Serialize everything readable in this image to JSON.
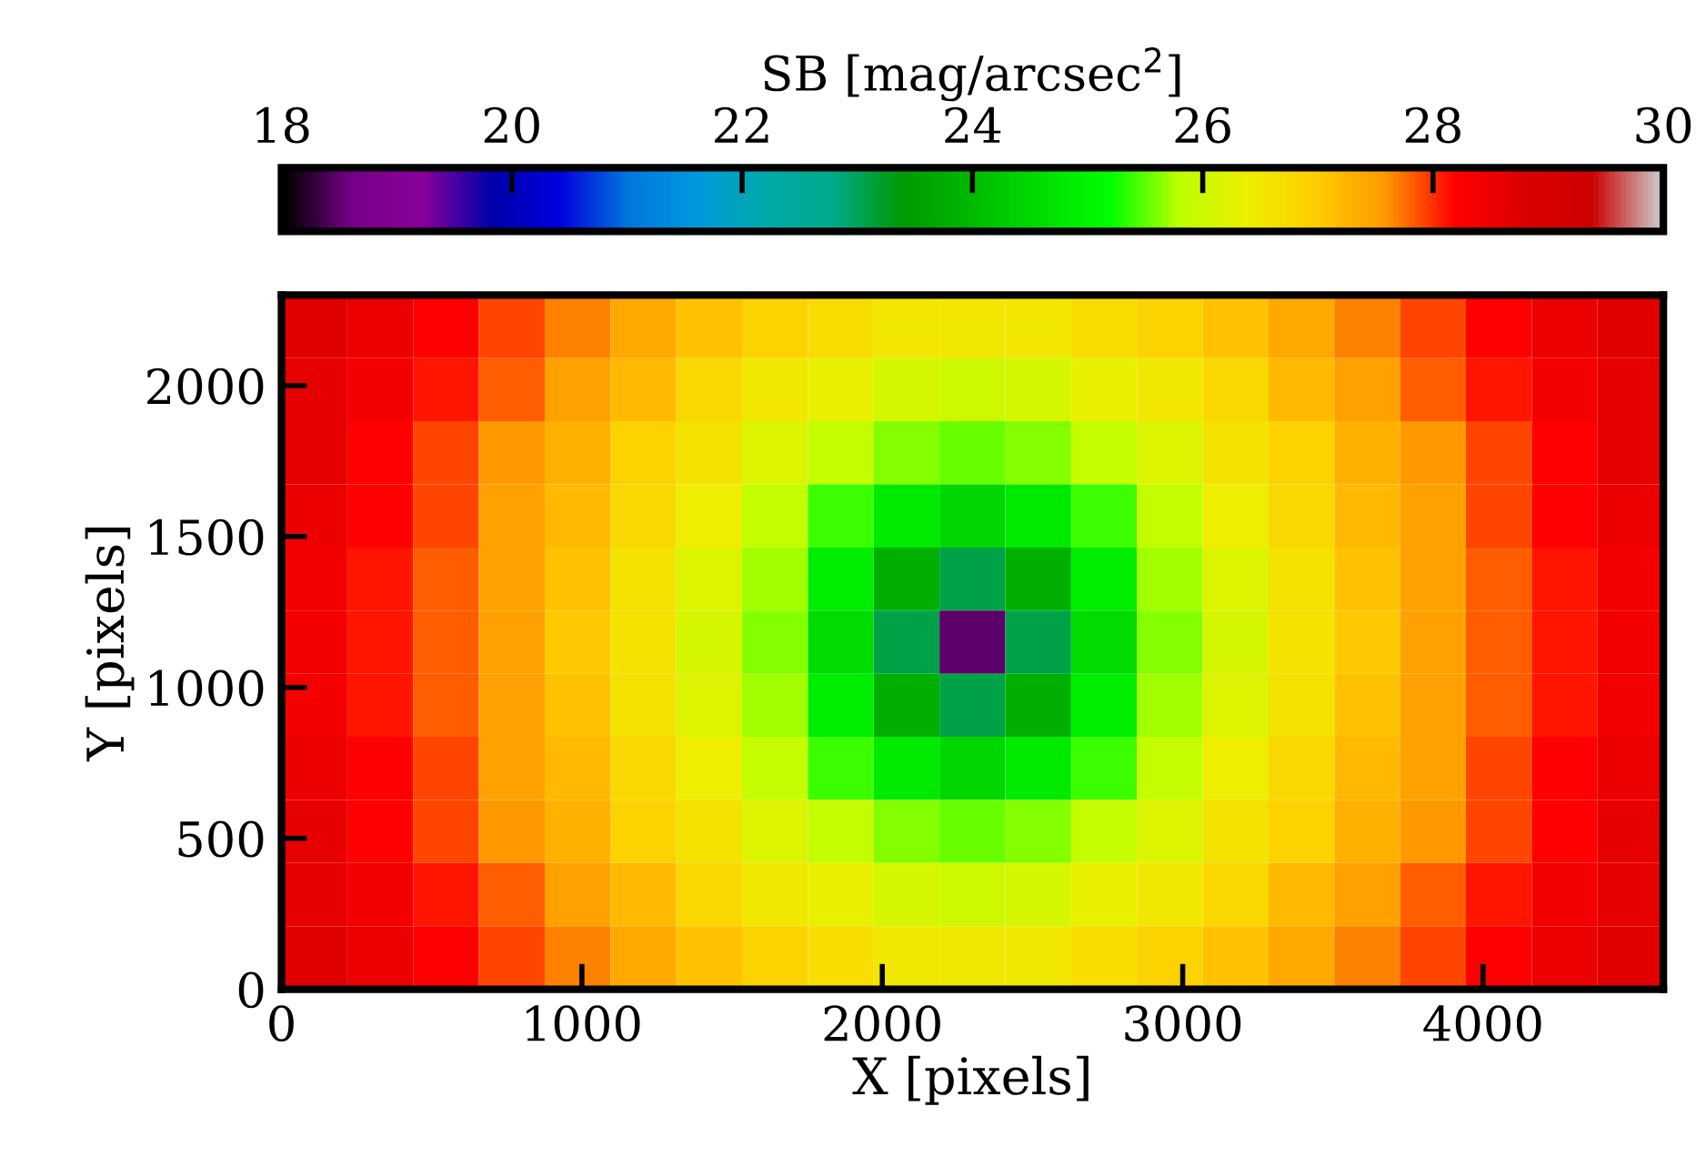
{
  "chart_data": {
    "type": "heatmap",
    "xlabel": "X [pixels]",
    "ylabel": "Y [pixels]",
    "clabel": "SB [mag/arcsec$^{2}$]",
    "xlim": [
      0,
      4600
    ],
    "ylim": [
      0,
      2300
    ],
    "xticks": [
      0,
      1000,
      2000,
      3000,
      4000
    ],
    "yticks": [
      0,
      500,
      1000,
      1500,
      2000
    ],
    "clim": [
      18,
      30
    ],
    "cticks": [
      18,
      20,
      22,
      24,
      26,
      28,
      30
    ],
    "cells": [
      [
        28.7,
        28.5,
        28.2,
        27.9,
        27.7,
        27.4,
        27.1,
        26.9,
        26.7,
        26.5,
        26.5,
        26.5,
        26.7,
        26.9,
        27.1,
        27.4,
        27.7,
        27.9,
        28.2,
        28.5,
        28.7
      ],
      [
        28.6,
        28.4,
        28.1,
        27.8,
        27.5,
        27.2,
        26.8,
        26.5,
        26.3,
        26.1,
        26.0,
        26.1,
        26.3,
        26.5,
        26.8,
        27.2,
        27.5,
        27.8,
        28.1,
        28.4,
        28.6
      ],
      [
        28.6,
        28.2,
        27.9,
        27.6,
        27.3,
        26.9,
        26.6,
        26.2,
        25.9,
        25.6,
        25.5,
        25.6,
        25.9,
        26.2,
        26.6,
        26.9,
        27.3,
        27.6,
        27.9,
        28.2,
        28.6
      ],
      [
        28.5,
        28.2,
        27.9,
        27.5,
        27.2,
        26.8,
        26.4,
        25.9,
        25.4,
        24.8,
        24.5,
        24.8,
        25.4,
        25.9,
        26.4,
        26.8,
        27.2,
        27.5,
        27.9,
        28.2,
        28.5
      ],
      [
        28.4,
        28.1,
        27.8,
        27.5,
        27.1,
        26.6,
        26.2,
        25.7,
        24.9,
        23.8,
        23.1,
        23.8,
        24.9,
        25.7,
        26.2,
        26.6,
        27.1,
        27.5,
        27.8,
        28.1,
        28.4
      ],
      [
        28.4,
        28.1,
        27.8,
        27.5,
        27.0,
        26.6,
        26.1,
        25.6,
        24.6,
        23.1,
        18.5,
        23.1,
        24.6,
        25.6,
        26.1,
        26.6,
        27.0,
        27.5,
        27.8,
        28.1,
        28.4
      ],
      [
        28.4,
        28.1,
        27.8,
        27.5,
        27.1,
        26.6,
        26.2,
        25.7,
        24.9,
        23.8,
        23.1,
        23.8,
        24.9,
        25.7,
        26.2,
        26.6,
        27.1,
        27.5,
        27.8,
        28.1,
        28.4
      ],
      [
        28.5,
        28.2,
        27.9,
        27.5,
        27.2,
        26.8,
        26.4,
        25.9,
        25.4,
        24.8,
        24.5,
        24.8,
        25.4,
        25.9,
        26.4,
        26.8,
        27.2,
        27.5,
        27.9,
        28.2,
        28.5
      ],
      [
        28.6,
        28.2,
        27.9,
        27.6,
        27.3,
        26.9,
        26.6,
        26.2,
        25.9,
        25.6,
        25.5,
        25.6,
        25.9,
        26.2,
        26.6,
        26.9,
        27.3,
        27.6,
        27.9,
        28.2,
        28.6
      ],
      [
        28.6,
        28.4,
        28.1,
        27.8,
        27.5,
        27.2,
        26.8,
        26.5,
        26.3,
        26.1,
        26.0,
        26.1,
        26.3,
        26.5,
        26.8,
        27.2,
        27.5,
        27.8,
        28.1,
        28.4,
        28.6
      ],
      [
        28.7,
        28.5,
        28.2,
        27.9,
        27.7,
        27.4,
        27.1,
        26.9,
        26.7,
        26.5,
        26.5,
        26.5,
        26.7,
        26.9,
        27.1,
        27.4,
        27.7,
        27.9,
        28.2,
        28.5,
        28.7
      ]
    ]
  }
}
